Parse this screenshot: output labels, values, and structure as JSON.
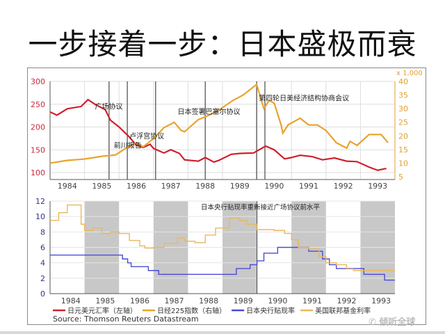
{
  "title": "一步接着一步：日本盛极而衰",
  "source": "Source: Thomson Reuters Datastream",
  "watermark": "倾听全球",
  "chart_data": [
    {
      "type": "line",
      "xlim": [
        1984,
        1994
      ],
      "x_tick_labels": [
        "1984",
        "1985",
        "1986",
        "1987",
        "1988",
        "1989",
        "1990",
        "1991",
        "1992",
        "1993"
      ],
      "y_left": {
        "ylim": [
          100,
          300
        ],
        "ticks": [
          100,
          150,
          200,
          250,
          300
        ],
        "color": "#c8283c"
      },
      "y_right": {
        "ylim": [
          5,
          40
        ],
        "ticks": [
          5,
          10,
          15,
          20,
          25,
          30,
          35,
          40
        ],
        "unit_label": "x 1,000",
        "color": "#e0a030"
      },
      "grid": true,
      "series": [
        {
          "name": "日元美元汇率（左轴）",
          "axis": "left",
          "color": "#d0202c",
          "x": [
            1984.0,
            1984.2,
            1984.5,
            1984.9,
            1985.1,
            1985.3,
            1985.6,
            1985.75,
            1986.0,
            1986.3,
            1986.5,
            1986.7,
            1986.9,
            1987.0,
            1987.3,
            1987.5,
            1987.75,
            1987.9,
            1988.3,
            1988.5,
            1988.75,
            1988.9,
            1989.25,
            1989.5,
            1989.9,
            1990.25,
            1990.5,
            1990.8,
            1991.0,
            1991.25,
            1991.6,
            1991.9,
            1992.25,
            1992.6,
            1992.9,
            1993.25,
            1993.5,
            1993.75
          ],
          "y": [
            233,
            226,
            240,
            245,
            260,
            250,
            238,
            215,
            200,
            178,
            160,
            155,
            162,
            153,
            143,
            150,
            142,
            128,
            125,
            133,
            123,
            127,
            140,
            142,
            143,
            158,
            150,
            130,
            133,
            138,
            135,
            128,
            132,
            125,
            124,
            112,
            105,
            109
          ]
        },
        {
          "name": "日经225指数（右轴）",
          "axis": "right",
          "color": "#e8a32b",
          "x": [
            1984.0,
            1984.5,
            1985.0,
            1985.5,
            1985.9,
            1986.2,
            1986.5,
            1986.7,
            1987.0,
            1987.3,
            1987.6,
            1987.8,
            1987.9,
            1988.3,
            1988.6,
            1988.9,
            1989.3,
            1989.6,
            1989.99,
            1990.2,
            1990.35,
            1990.5,
            1990.7,
            1990.75,
            1990.9,
            1991.25,
            1991.5,
            1991.75,
            1992.0,
            1992.3,
            1992.6,
            1992.7,
            1992.9,
            1993.25,
            1993.6,
            1993.8
          ],
          "y": [
            10,
            11,
            11.5,
            12.5,
            13,
            15.5,
            17.5,
            16,
            19,
            23,
            25,
            22,
            21.5,
            26,
            27.5,
            29.5,
            33,
            35,
            38.9,
            30,
            33,
            32,
            24,
            21,
            24,
            26.5,
            24,
            24,
            22,
            17.5,
            15.5,
            18,
            16.5,
            20.5,
            20.5,
            17.5
          ]
        }
      ],
      "event_lines": [
        1985.71,
        1986.24,
        1987.06,
        1988.5,
        1989.99,
        1990.23
      ],
      "annotations": [
        {
          "text": "广场协议",
          "x": 1985.3,
          "y": 240
        },
        {
          "text": "前川报告",
          "x": 1985.85,
          "y": 154
        },
        {
          "text": "卢浮宫协议",
          "x": 1986.3,
          "y": 175
        },
        {
          "text": "日本签署巴塞尔协议",
          "x": 1987.7,
          "y": 228
        },
        {
          "text": "第四轮日美经济结构协商会议",
          "x": 1990.05,
          "y": 258
        }
      ]
    },
    {
      "type": "line",
      "xlim": [
        1984,
        1994
      ],
      "x_tick_labels": [
        "1984",
        "1985",
        "1986",
        "1987",
        "1988",
        "1989",
        "1990",
        "1991",
        "1992",
        "1993"
      ],
      "ylim": [
        0,
        12
      ],
      "y_ticks": [
        0,
        2,
        4,
        6,
        8,
        10,
        12
      ],
      "grid": true,
      "shaded_years": [
        1985,
        1987,
        1989,
        1991,
        1993
      ],
      "event_lines": [
        1990.0
      ],
      "annotation": "日本央行贴现率重新接近广场协议前水平",
      "series": [
        {
          "name": "日本央行贴现率",
          "color": "#4a4ad8",
          "step": true,
          "x": [
            1984.0,
            1986.1,
            1986.25,
            1986.35,
            1986.85,
            1987.15,
            1989.4,
            1989.8,
            1990.0,
            1990.2,
            1990.6,
            1991.5,
            1991.9,
            1992.1,
            1992.3,
            1993.1,
            1993.7,
            1994.0
          ],
          "y": [
            5.0,
            4.5,
            4.0,
            3.5,
            3.0,
            2.5,
            3.25,
            3.75,
            4.25,
            5.25,
            6.0,
            5.5,
            4.5,
            3.75,
            3.25,
            2.5,
            1.75,
            1.75
          ]
        },
        {
          "name": "美国联邦基金利率",
          "color": "#e8b860",
          "step": true,
          "x": [
            1984.0,
            1984.25,
            1984.5,
            1984.9,
            1985.0,
            1985.25,
            1985.5,
            1985.75,
            1986.0,
            1986.3,
            1986.6,
            1986.75,
            1987.0,
            1987.3,
            1987.7,
            1987.9,
            1988.2,
            1988.5,
            1988.8,
            1989.2,
            1989.5,
            1989.7,
            1989.99,
            1990.5,
            1990.8,
            1991.0,
            1991.2,
            1991.5,
            1991.8,
            1992.0,
            1992.3,
            1992.6,
            1992.8,
            1994.0
          ],
          "y": [
            9.5,
            10.5,
            11.5,
            9.0,
            8.2,
            8.5,
            7.8,
            8.0,
            7.8,
            6.9,
            6.2,
            5.9,
            6.0,
            6.5,
            7.2,
            6.8,
            6.6,
            7.6,
            8.5,
            9.8,
            9.5,
            9.0,
            8.3,
            8.2,
            7.8,
            7.0,
            6.0,
            5.8,
            4.8,
            4.0,
            3.75,
            3.2,
            3.0,
            3.0
          ]
        }
      ],
      "legend": {
        "placement": "bottom",
        "entries": [
          {
            "label": "日元美元汇率（左轴）",
            "color": "#d0202c"
          },
          {
            "label": "日经225指数（右轴）",
            "color": "#e8a32b"
          },
          {
            "label": "日本央行贴现率",
            "color": "#4a4ad8"
          },
          {
            "label": "美国联邦基金利率",
            "color": "#e8b860"
          }
        ]
      }
    }
  ]
}
